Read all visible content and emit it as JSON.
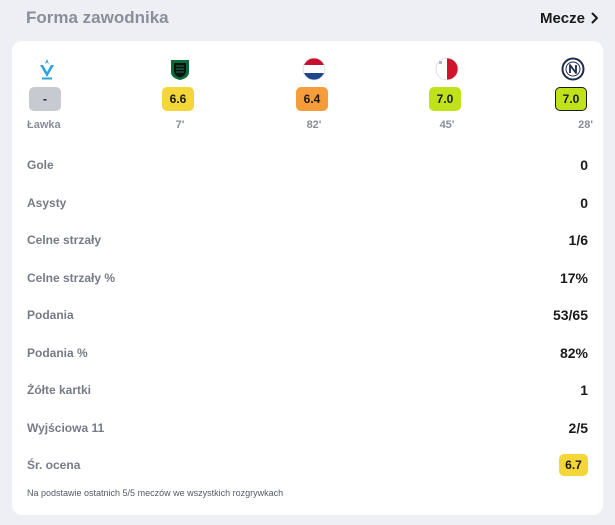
{
  "header": {
    "title": "Forma zawodnika",
    "link_label": "Mecze",
    "link_icon": "chevron-right-icon"
  },
  "matches": [
    {
      "club": "Olympique de Marseille",
      "logo_icon": "marseille-crest-icon",
      "rating": "-",
      "rating_color": "#c7cad1",
      "minute": "Ławka"
    },
    {
      "club": "Sassuolo",
      "logo_icon": "sassuolo-crest-icon",
      "rating": "6.6",
      "rating_color": "#f5d638",
      "minute": "7'"
    },
    {
      "club": "Netherlands",
      "logo_icon": "netherlands-flag-icon",
      "rating": "6.4",
      "rating_color": "#f59d3b",
      "minute": "82'"
    },
    {
      "club": "Malta",
      "logo_icon": "malta-flag-icon",
      "rating": "7.0",
      "rating_color": "#c0e21b",
      "minute": "45'"
    },
    {
      "club": "Napoli",
      "logo_icon": "napoli-crest-icon",
      "rating": "7.0",
      "rating_color": "#c0e21b",
      "minute": "28'",
      "highlighted": true
    }
  ],
  "stats": [
    {
      "label": "Gole",
      "value": "0"
    },
    {
      "label": "Asysty",
      "value": "0"
    },
    {
      "label": "Celne strzały",
      "value": "1/6"
    },
    {
      "label": "Celne strzały %",
      "value": "17%"
    },
    {
      "label": "Podania",
      "value": "53/65"
    },
    {
      "label": "Podania %",
      "value": "82%"
    },
    {
      "label": "Żółte kartki",
      "value": "1"
    },
    {
      "label": "Wyjściowa 11",
      "value": "2/5"
    }
  ],
  "average": {
    "label": "Śr. ocena",
    "value": "6.7",
    "color": "#f5d638"
  },
  "footnote": "Na podstawie ostatnich 5/5 meczów we wszystkich rozgrywkach"
}
